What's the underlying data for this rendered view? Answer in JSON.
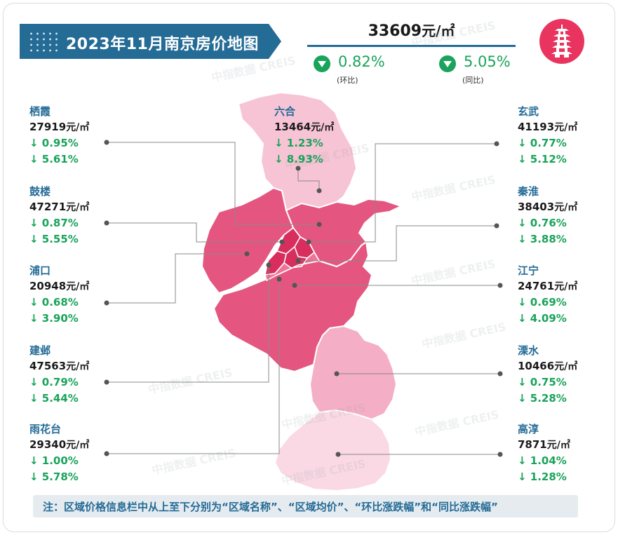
{
  "header": {
    "title": "2023年11月南京房价地图",
    "avg_price": "33609",
    "avg_unit": "元/㎡",
    "mom_change": "0.82%",
    "mom_label": "(环比)",
    "yoy_change": "5.05%",
    "yoy_label": "(同比)"
  },
  "colors": {
    "title_bg": "#246b96",
    "district_name": "#246b96",
    "decline_green": "#1aa35a",
    "map_darkest": "#d72e5d",
    "map_dark": "#e4567f",
    "map_medium": "#ef7399",
    "map_light": "#f4aec6",
    "map_lighter": "#f7c4d5",
    "map_lightest": "#fad9e4",
    "logo_bg": "#e8345f",
    "note_bg": "#e6ebef"
  },
  "icons": {
    "logo": "pagoda-icon",
    "change_indicator": "triangle-down-icon"
  },
  "districts": {
    "qixia": {
      "name": "栖霞",
      "price": "27919",
      "unit": "元/㎡",
      "mom": "↓ 0.95%",
      "yoy": "↓ 5.61%"
    },
    "luhe": {
      "name": "六合",
      "price": "13464",
      "unit": "元/㎡",
      "mom": "↓ 1.23%",
      "yoy": "↓ 8.93%"
    },
    "xuanwu": {
      "name": "玄武",
      "price": "41193",
      "unit": "元/㎡",
      "mom": "↓ 0.77%",
      "yoy": "↓ 5.12%"
    },
    "gulou": {
      "name": "鼓楼",
      "price": "47271",
      "unit": "元/㎡",
      "mom": "↓ 0.87%",
      "yoy": "↓ 5.55%"
    },
    "qinhuai": {
      "name": "秦淮",
      "price": "38403",
      "unit": "元/㎡",
      "mom": "↓ 0.76%",
      "yoy": "↓ 3.88%"
    },
    "pukou": {
      "name": "浦口",
      "price": "20948",
      "unit": "元/㎡",
      "mom": "↓ 0.68%",
      "yoy": "↓ 3.90%"
    },
    "jiangning": {
      "name": "江宁",
      "price": "24761",
      "unit": "元/㎡",
      "mom": "↓ 0.69%",
      "yoy": "↓ 4.09%"
    },
    "jianye": {
      "name": "建邺",
      "price": "47563",
      "unit": "元/㎡",
      "mom": "↓ 0.79%",
      "yoy": "↓ 5.44%"
    },
    "lishui": {
      "name": "溧水",
      "price": "10466",
      "unit": "元/㎡",
      "mom": "↓ 0.75%",
      "yoy": "↓ 5.28%"
    },
    "yuhuatai": {
      "name": "雨花台",
      "price": "29340",
      "unit": "元/㎡",
      "mom": "↓ 1.00%",
      "yoy": "↓ 5.78%"
    },
    "gaochun": {
      "name": "高淳",
      "price": "7871",
      "unit": "元/㎡",
      "mom": "↓ 1.04%",
      "yoy": "↓ 1.28%"
    }
  },
  "watermark": "中指数据 CREIS",
  "note": "注：区域价格信息栏中从上至下分别为“区域名称”、“区域均价”、“环比涨跌幅”和“同比涨跌幅”"
}
